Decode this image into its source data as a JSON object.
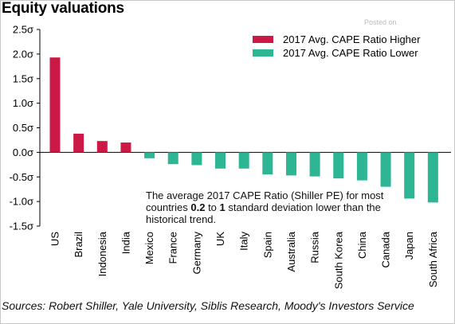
{
  "header": {
    "title": "Equity valuations"
  },
  "watermark": "Posted on",
  "annotation": {
    "pre": "The average 2017 CAPE Ratio (Shiller PE) for most countries ",
    "b1": "0.2",
    "mid": " to ",
    "b2": "1",
    "post": " standard deviation lower than the historical trend."
  },
  "footer": {
    "source": "Sources: Robert Shiller, Yale University, Siblis Research, Moody's Investors Service"
  },
  "colors": {
    "higher": "#cc1844",
    "lower": "#2db594"
  },
  "chart_data": {
    "type": "bar",
    "categories": [
      "US",
      "Brazil",
      "Indonesia",
      "India",
      "Mexico",
      "France",
      "Germany",
      "UK",
      "Italy",
      "Spain",
      "Australia",
      "Russia",
      "South Korea",
      "China",
      "Canada",
      "Japan",
      "South Africa"
    ],
    "values": [
      1.93,
      0.38,
      0.23,
      0.2,
      -0.12,
      -0.24,
      -0.26,
      -0.33,
      -0.33,
      -0.45,
      -0.47,
      -0.49,
      -0.53,
      -0.57,
      -0.7,
      -0.94,
      -1.02
    ],
    "ylim": [
      -1.5,
      2.5
    ],
    "yticks": [
      2.5,
      2.0,
      1.5,
      1.0,
      0.5,
      0.0,
      -0.5,
      -1.0,
      -1.5
    ],
    "ytick_labels": [
      "2.5σ",
      "2.0σ",
      "1.5σ",
      "1.0σ",
      "0.5σ",
      "0.0σ",
      "-0.5σ",
      "-1.0σ",
      "-1.5σ"
    ],
    "legend": [
      {
        "name": "2017 Avg. CAPE Ratio Higher",
        "color": "#cc1844"
      },
      {
        "name": "2017 Avg. CAPE Ratio Lower",
        "color": "#2db594"
      }
    ],
    "legend_position": "top-right",
    "grid": false,
    "xlabel": "",
    "ylabel": ""
  }
}
